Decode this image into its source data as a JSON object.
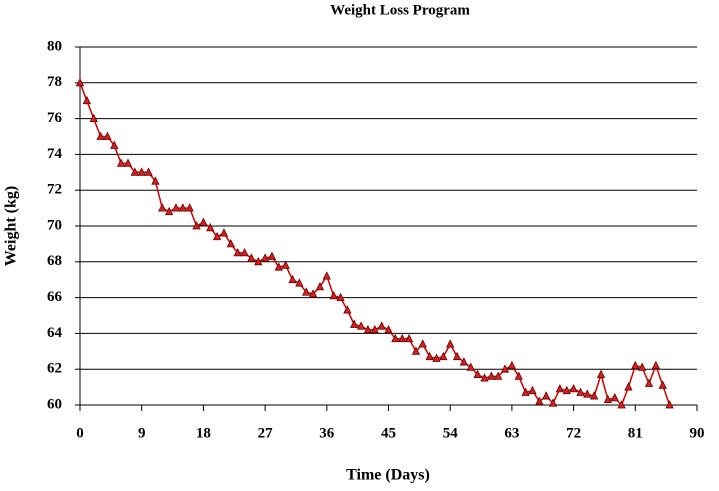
{
  "chart_data": {
    "type": "line",
    "title": "Weight Loss Program",
    "x_label": "Time (Days)",
    "y_label": "Weight (kg)",
    "color": "#cc0000",
    "marker_color": "#d42020",
    "grid": true,
    "xlim": [
      0,
      90
    ],
    "xticks": [
      0,
      9,
      18,
      27,
      36,
      45,
      54,
      63,
      72,
      81,
      90
    ],
    "ylim": [
      60,
      80
    ],
    "yticks": [
      60,
      62,
      64,
      66,
      68,
      70,
      72,
      74,
      76,
      78,
      80
    ],
    "x": [
      0,
      1,
      2,
      3,
      4,
      5,
      6,
      7,
      8,
      9,
      10,
      11,
      12,
      13,
      14,
      15,
      16,
      17,
      18,
      19,
      20,
      21,
      22,
      23,
      24,
      25,
      26,
      27,
      28,
      29,
      30,
      31,
      32,
      33,
      34,
      35,
      36,
      37,
      38,
      39,
      40,
      41,
      42,
      43,
      44,
      45,
      46,
      47,
      48,
      49,
      50,
      51,
      52,
      53,
      54,
      55,
      56,
      57,
      58,
      59,
      60,
      61,
      62,
      63,
      64,
      65,
      66,
      67,
      68,
      69,
      70,
      71,
      72,
      73,
      74,
      75,
      76,
      77,
      78,
      79,
      80,
      81,
      82,
      83,
      84,
      85,
      86
    ],
    "values": [
      78,
      77,
      76,
      75,
      75,
      74.5,
      73.5,
      73.5,
      73,
      73,
      73,
      72.5,
      71,
      70.8,
      71,
      71,
      71,
      70,
      70.2,
      69.9,
      69.4,
      69.6,
      69,
      68.5,
      68.5,
      68.2,
      68,
      68.2,
      68.3,
      67.7,
      67.8,
      67,
      66.8,
      66.3,
      66.2,
      66.6,
      67.2,
      66.1,
      66,
      65.3,
      64.5,
      64.4,
      64.2,
      64.2,
      64.4,
      64.2,
      63.7,
      63.7,
      63.7,
      63,
      63.4,
      62.7,
      62.6,
      62.7,
      63.4,
      62.7,
      62.4,
      62.1,
      61.7,
      61.5,
      61.6,
      61.6,
      62,
      62.2,
      61.6,
      60.7,
      60.8,
      60.2,
      60.5,
      60.1,
      60.9,
      60.8,
      60.9,
      60.7,
      60.6,
      60.5,
      61.7,
      60.3,
      60.4,
      60,
      61,
      62.2,
      62.1,
      61.2,
      62.2,
      61.1,
      60
    ]
  }
}
